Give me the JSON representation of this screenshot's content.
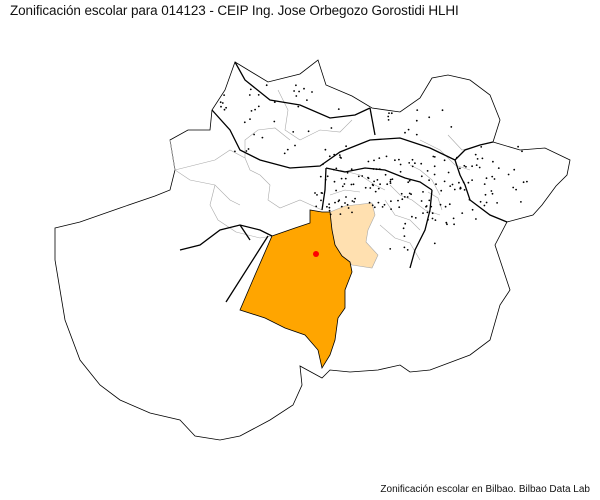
{
  "title": "Zonificación escolar para 014123 - CEIP Ing. Jose Orbegozo Gorostidi HLHI",
  "caption": "Zonificación escolar en Bilbao. Bilbao Data Lab",
  "map": {
    "colors": {
      "primary_zone": "#ffa500",
      "secondary_zone": "#ffe0b0",
      "school_marker": "#ff0000",
      "district_border": "#000000",
      "neighborhood_border": "#aaaaaa",
      "points": "#000000"
    },
    "school": "014123 - CEIP Ing. Jose Orbegozo Gorostidi HLHI"
  }
}
